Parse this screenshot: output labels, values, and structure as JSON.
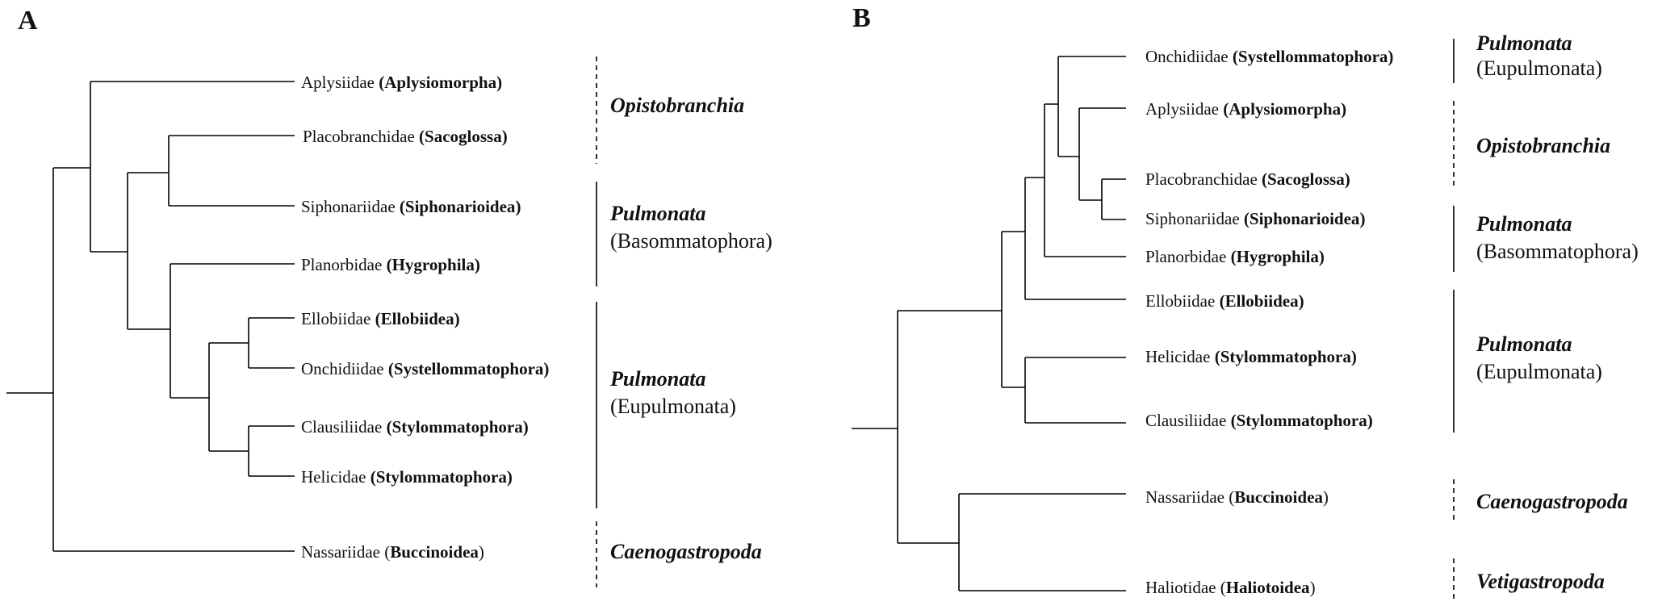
{
  "panels": [
    {
      "letter": "A",
      "taxa": [
        {
          "family": "Aplysiidae",
          "clade": "Aplysiomorpha",
          "paren_bold": true
        },
        {
          "family": "Placobranchidae",
          "clade": "Sacoglossa",
          "paren_bold": true
        },
        {
          "family": "Siphonariidae",
          "clade": "Siphonarioidea",
          "paren_bold": true
        },
        {
          "family": "Planorbidae",
          "clade": "Hygrophila",
          "paren_bold": true
        },
        {
          "family": "Ellobiidae",
          "clade": "Ellobiidea",
          "paren_bold": true
        },
        {
          "family": "Onchidiidae",
          "clade": "Systellommatophora",
          "paren_bold": true
        },
        {
          "family": "Clausiliidae",
          "clade": "Stylommatophora",
          "paren_bold": true
        },
        {
          "family": "Helicidae",
          "clade": "Stylommatophora",
          "paren_bold": true
        },
        {
          "family": "Nassariidae",
          "clade": "Buccinoidea",
          "paren_bold": false
        }
      ],
      "groups": [
        {
          "main": "Opistobranchia",
          "sub": "",
          "bracket": "dashed"
        },
        {
          "main": "Pulmonata",
          "sub": "(Basommatophora)",
          "bracket": "solid"
        },
        {
          "main": "Pulmonata",
          "sub": "(Eupulmonata)",
          "bracket": "solid"
        },
        {
          "main": "Caenogastropoda",
          "sub": "",
          "bracket": "dashed"
        }
      ]
    },
    {
      "letter": "B",
      "taxa": [
        {
          "family": "Onchidiidae",
          "clade": "Systellommatophora",
          "paren_bold": true
        },
        {
          "family": "Aplysiidae",
          "clade": "Aplysiomorpha",
          "paren_bold": true
        },
        {
          "family": "Placobranchidae",
          "clade": "Sacoglossa",
          "paren_bold": true
        },
        {
          "family": "Siphonariidae",
          "clade": "Siphonarioidea",
          "paren_bold": true
        },
        {
          "family": "Planorbidae",
          "clade": "Hygrophila",
          "paren_bold": true
        },
        {
          "family": "Ellobiidae",
          "clade": "Ellobiidea",
          "paren_bold": true
        },
        {
          "family": "Helicidae",
          "clade": "Stylommatophora",
          "paren_bold": true
        },
        {
          "family": "Clausiliidae",
          "clade": "Stylommatophora",
          "paren_bold": true
        },
        {
          "family": "Nassariidae",
          "clade": "Buccinoidea",
          "paren_bold": false
        },
        {
          "family": "Haliotidae",
          "clade": "Haliotoidea",
          "paren_bold": false
        }
      ],
      "groups": [
        {
          "main": "Pulmonata",
          "sub": "(Eupulmonata)",
          "bracket": "solid"
        },
        {
          "main": "Opistobranchia",
          "sub": "",
          "bracket": "dashed"
        },
        {
          "main": "Pulmonata",
          "sub": "(Basommatophora)",
          "bracket": "solid"
        },
        {
          "main": "Pulmonata",
          "sub": "(Eupulmonata)",
          "bracket": "solid"
        },
        {
          "main": "Caenogastropoda",
          "sub": "",
          "bracket": "dashed"
        },
        {
          "main": "Vetigastropoda",
          "sub": "",
          "bracket": "dashed"
        }
      ]
    }
  ]
}
